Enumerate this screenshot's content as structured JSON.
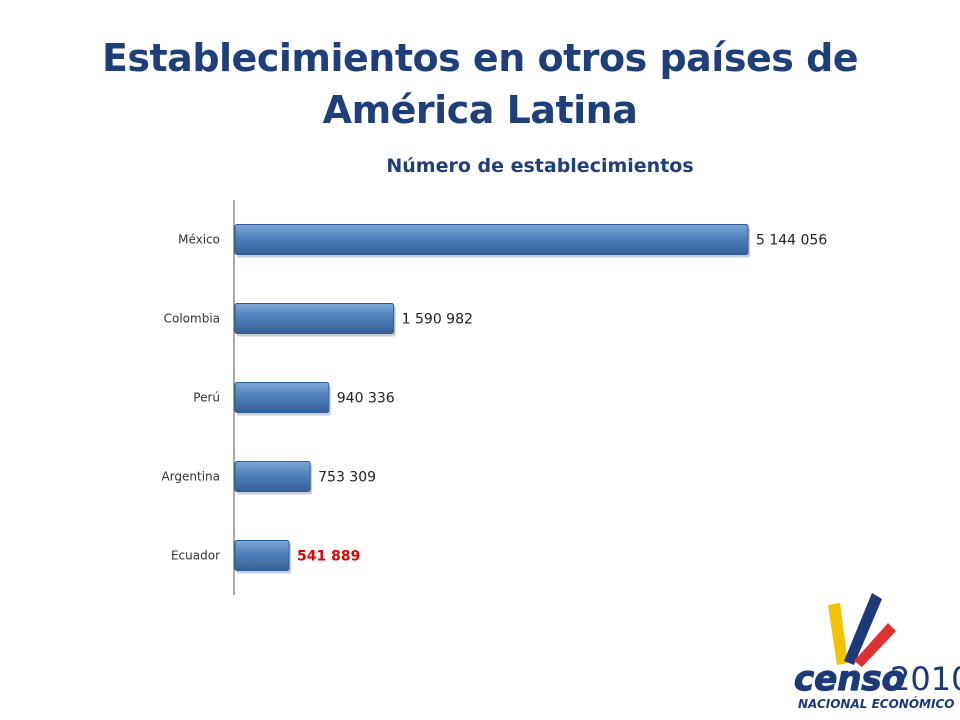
{
  "slide": {
    "title_line1": "Establecimientos en otros países de",
    "title_line2": "América Latina"
  },
  "logo": {
    "wordmark": "censo",
    "year": "2010",
    "tagline": "NACIONAL ECONÓMICO"
  },
  "colors": {
    "bar": "#4f81bd",
    "bar_dark": "#2f5f9a",
    "title": "#1f3f7a",
    "highlight_label": "#e00000",
    "logo_blue": "#1c3a7a",
    "logo_yellow": "#f3c200",
    "logo_red": "#e03030"
  },
  "chart_data": {
    "type": "bar",
    "orientation": "horizontal",
    "title": "Número de establecimientos",
    "categories": [
      "México",
      "Colombia",
      "Perú",
      "Argentina",
      "Ecuador"
    ],
    "values": [
      5144056,
      1590982,
      940336,
      753309,
      541889
    ],
    "data_labels": [
      "5 144 056",
      "1 590 982",
      "940 336",
      "753 309",
      "541 889"
    ],
    "highlight_category": "Ecuador",
    "xlim": [
      0,
      5144056
    ],
    "grid": false,
    "legend": "none"
  }
}
